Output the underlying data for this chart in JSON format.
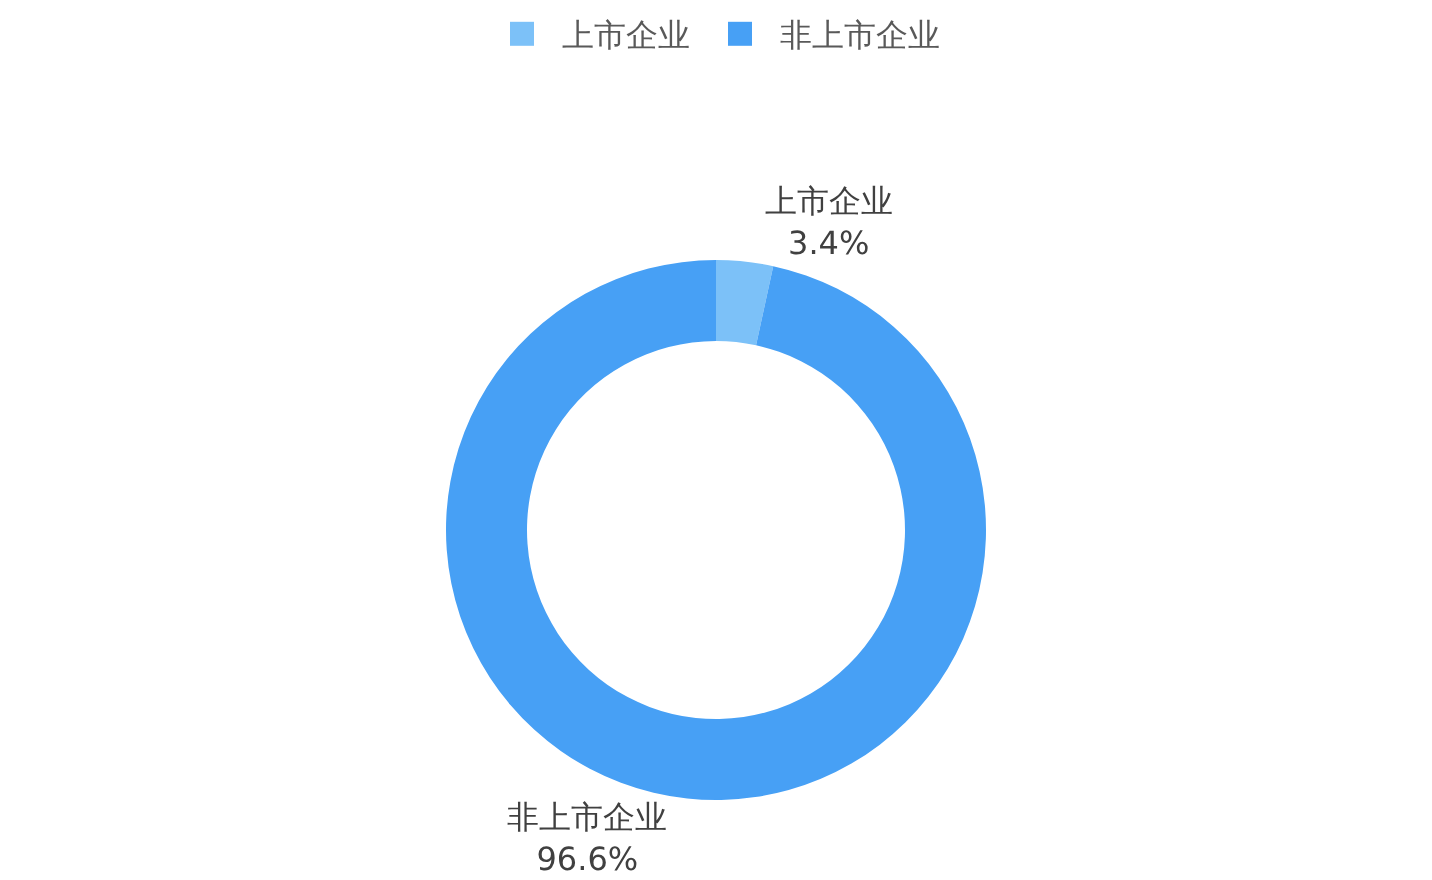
{
  "chart_data": {
    "type": "donut",
    "categories": [
      "上市企业",
      "非上市企业"
    ],
    "values": [
      3.4,
      96.6
    ],
    "value_labels": [
      "3.4%",
      "96.6%"
    ],
    "colors": [
      "#7cc1f8",
      "#47a0f5"
    ],
    "legend": "top"
  }
}
